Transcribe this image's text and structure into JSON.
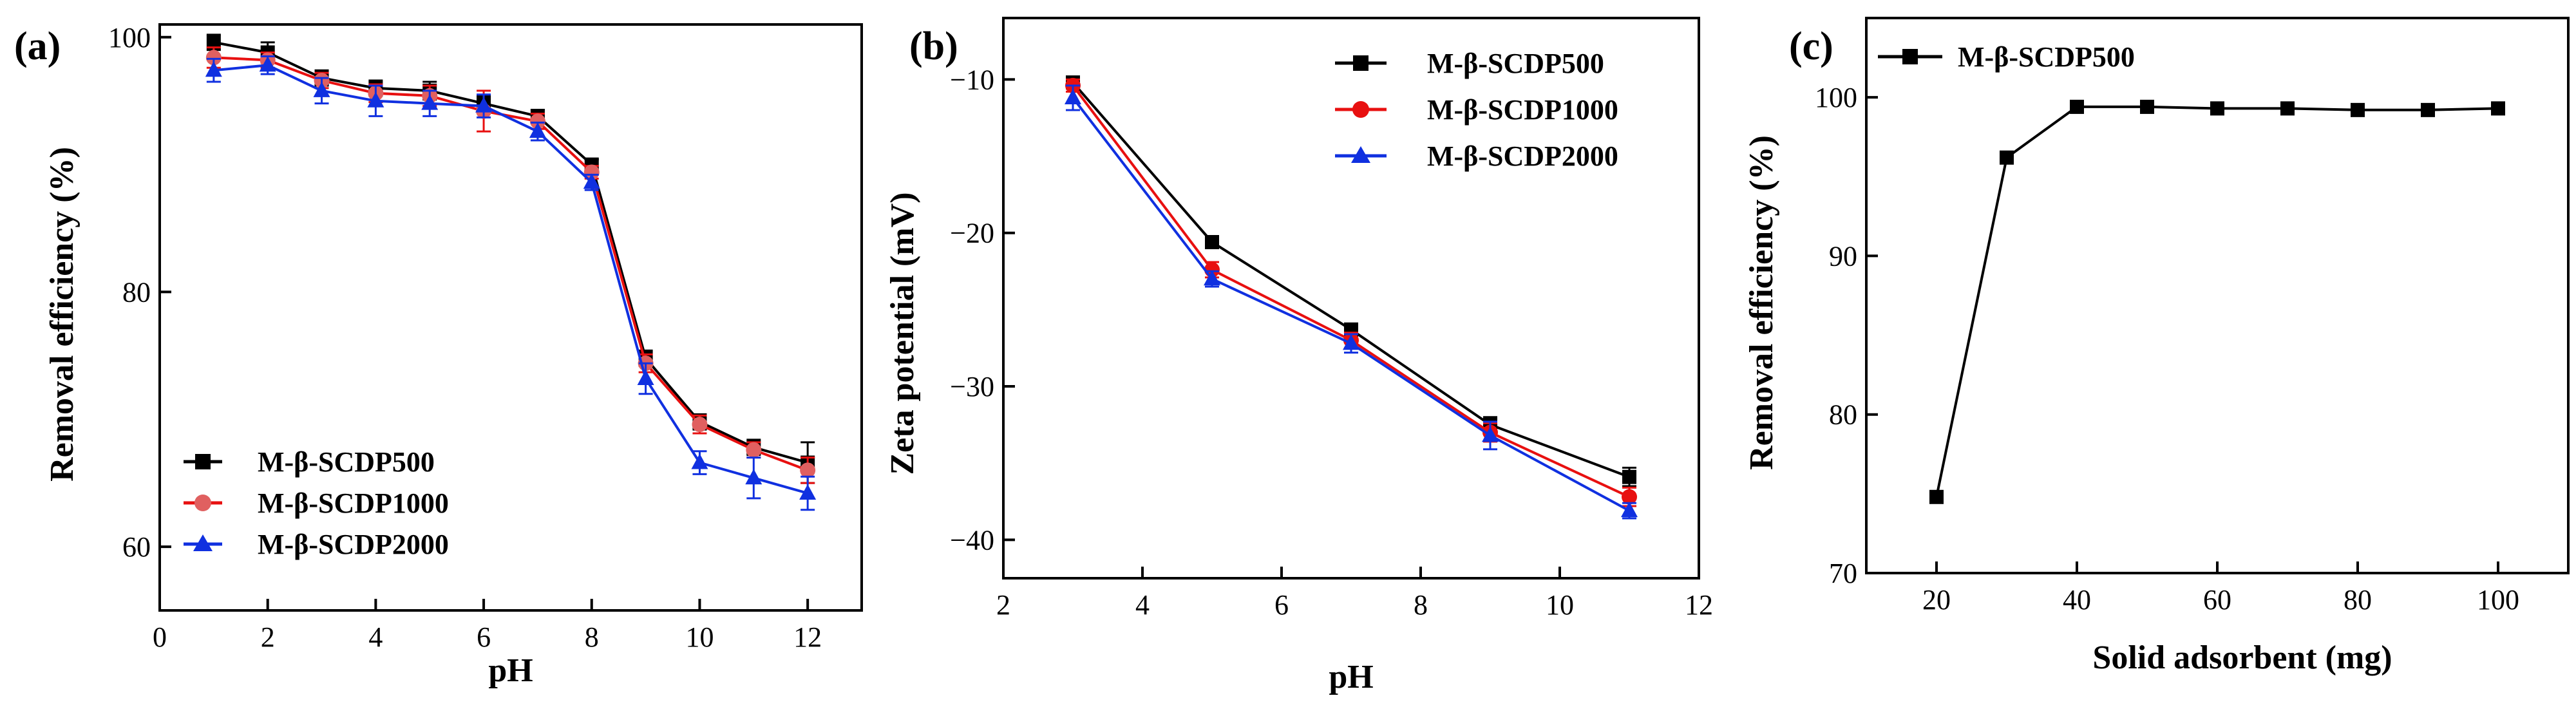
{
  "colors": {
    "black": "#000000",
    "red": "#E81010",
    "blue": "#1030E0",
    "red_marker": "#E06060"
  },
  "chart_data": [
    {
      "id": "a",
      "type": "line",
      "panel_label": "(a)",
      "xlabel": "pH",
      "ylabel": "Removal efficiency (%)",
      "xlim": [
        0,
        13
      ],
      "ylim": [
        55,
        101
      ],
      "xticks": [
        0,
        2,
        4,
        6,
        8,
        10,
        12
      ],
      "yticks": [
        60,
        80,
        100
      ],
      "legend_position": "bottom-left",
      "series": [
        {
          "name": "M-β-SCDP500",
          "color": "#000000",
          "marker": "square",
          "x": [
            1,
            2,
            3,
            4,
            5,
            6,
            7,
            8,
            9,
            10,
            11,
            12
          ],
          "y": [
            99.6,
            98.8,
            96.8,
            96.0,
            95.8,
            94.8,
            93.8,
            90.0,
            74.8,
            69.8,
            67.8,
            66.6
          ],
          "err": [
            0.6,
            0.8,
            0.6,
            0.6,
            0.7,
            0.6,
            0.5,
            0.4,
            0.6,
            0.6,
            0.6,
            1.6
          ]
        },
        {
          "name": "M-β-SCDP1000",
          "color": "#E81010",
          "marker": "circle",
          "x": [
            1,
            2,
            3,
            4,
            5,
            6,
            7,
            8,
            9,
            10,
            11,
            12
          ],
          "y": [
            98.4,
            98.2,
            96.6,
            95.6,
            95.4,
            94.2,
            93.4,
            89.4,
            74.4,
            69.6,
            67.6,
            66.0
          ],
          "err": [
            0.8,
            0.6,
            0.6,
            0.7,
            0.8,
            1.6,
            0.6,
            0.5,
            0.7,
            0.7,
            0.6,
            1.0
          ]
        },
        {
          "name": "M-β-SCDP2000",
          "color": "#1030E0",
          "marker": "triangle",
          "x": [
            1,
            2,
            3,
            4,
            5,
            6,
            7,
            8,
            9,
            10,
            11,
            12
          ],
          "y": [
            97.4,
            97.8,
            95.8,
            95.0,
            94.8,
            94.6,
            92.6,
            88.6,
            73.2,
            66.6,
            65.4,
            64.2
          ],
          "err": [
            0.9,
            0.7,
            1.0,
            1.2,
            1.0,
            0.9,
            0.7,
            0.6,
            1.2,
            0.9,
            1.6,
            1.3
          ]
        }
      ]
    },
    {
      "id": "b",
      "type": "line",
      "panel_label": "(b)",
      "xlabel": "pH",
      "ylabel": "Zeta potential (mV)",
      "xlim": [
        2,
        12
      ],
      "ylim": [
        -42.5,
        -6
      ],
      "xticks": [
        2,
        4,
        6,
        8,
        10,
        12
      ],
      "yticks": [
        -40,
        -30,
        -20,
        -10
      ],
      "legend_position": "top-right",
      "series": [
        {
          "name": "M-β-SCDP500",
          "color": "#000000",
          "marker": "square",
          "x": [
            3,
            5,
            7,
            9,
            11
          ],
          "y": [
            -10.2,
            -20.6,
            -26.3,
            -32.5,
            -35.9
          ],
          "err": [
            0.3,
            0.3,
            0.4,
            0.5,
            0.6
          ]
        },
        {
          "name": "M-β-SCDP1000",
          "color": "#E81010",
          "marker": "circle",
          "x": [
            3,
            5,
            7,
            9,
            11
          ],
          "y": [
            -10.4,
            -22.4,
            -27.0,
            -33.0,
            -37.2
          ],
          "err": [
            0.4,
            0.5,
            0.5,
            0.6,
            0.6
          ]
        },
        {
          "name": "M-β-SCDP2000",
          "color": "#1030E0",
          "marker": "triangle",
          "x": [
            3,
            5,
            7,
            9,
            11
          ],
          "y": [
            -11.2,
            -23.0,
            -27.2,
            -33.2,
            -38.1
          ],
          "err": [
            0.8,
            0.5,
            0.6,
            0.9,
            0.5
          ]
        }
      ]
    },
    {
      "id": "c",
      "type": "line",
      "panel_label": "(c)",
      "xlabel": "Solid adsorbent (mg)",
      "ylabel": "Removal efficiency (%)",
      "xlim": [
        10,
        110
      ],
      "ylim": [
        70,
        105
      ],
      "xticks": [
        20,
        40,
        60,
        80,
        100
      ],
      "yticks": [
        70,
        80,
        90,
        100
      ],
      "legend_position": "top-left",
      "series": [
        {
          "name": "M-β-SCDP500",
          "color": "#000000",
          "marker": "square",
          "x": [
            20,
            30,
            40,
            50,
            60,
            70,
            80,
            90,
            100
          ],
          "y": [
            74.8,
            96.2,
            99.4,
            99.4,
            99.3,
            99.3,
            99.2,
            99.2,
            99.3
          ],
          "err": []
        }
      ]
    }
  ]
}
